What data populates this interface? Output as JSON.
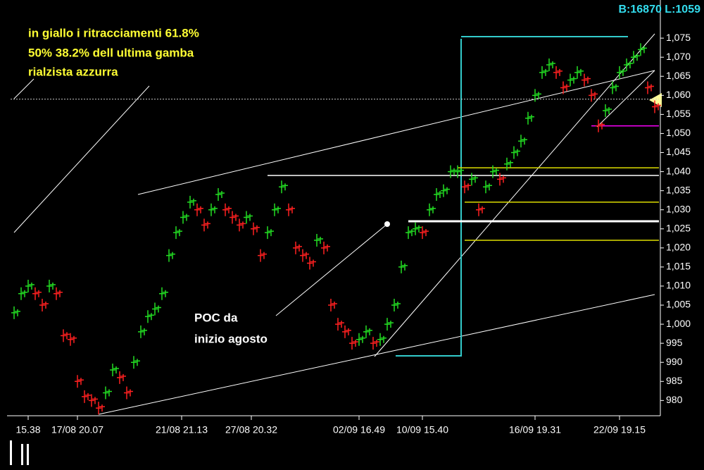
{
  "chart_data": {
    "type": "ohlc",
    "title": "B:16870 L:1059",
    "annotations": [
      "in giallo i ritracciamenti 61.8%",
      "50% 38.2% dell ultima gamba",
      "rialzista azzurra",
      "POC da",
      "inizio agosto"
    ],
    "up_color": "#22dd22",
    "down_color": "#ff2020",
    "values": [
      1003,
      1008,
      1010,
      1008,
      1005,
      1010,
      1008,
      997,
      996,
      985,
      981,
      980,
      978,
      982,
      988,
      986,
      982,
      990,
      998,
      1002,
      1004,
      1008,
      1018,
      1024,
      1028,
      1032,
      1030,
      1026,
      1030,
      1034,
      1030,
      1028,
      1026,
      1028,
      1025,
      1018,
      1024,
      1030,
      1036,
      1030,
      1020,
      1018,
      1016,
      1022,
      1020,
      1005,
      1000,
      998,
      995,
      996,
      998,
      995,
      996,
      1000,
      1005,
      1015,
      1024,
      1025,
      1024,
      1030,
      1034,
      1035,
      1040,
      1040,
      1036,
      1038,
      1030,
      1036,
      1040,
      1038,
      1042,
      1045,
      1048,
      1054,
      1060,
      1066,
      1068,
      1066,
      1062,
      1064,
      1066,
      1064,
      1060,
      1052,
      1056,
      1062,
      1066,
      1068,
      1070,
      1072,
      1062,
      1057
    ],
    "levels": [
      {
        "value": 1059,
        "color": "#cccccc",
        "from": -1
      },
      {
        "value": 1052,
        "color": "#ff00ff",
        "from": 82
      },
      {
        "value": 1041,
        "color": "#dddd00",
        "from": 63
      },
      {
        "value": 1039,
        "color": "#ffffff",
        "from": 36
      },
      {
        "value": 1032,
        "color": "#dddd00",
        "from": 64
      },
      {
        "value": 1027,
        "color": "#ffffff",
        "from": 56
      },
      {
        "value": 1022,
        "color": "#dddd00",
        "from": 64
      }
    ],
    "ylim": [
      976,
      1085
    ],
    "yticks": [
      980,
      985,
      990,
      995,
      {
        "value": 1000,
        "label": "1,000"
      },
      {
        "value": 1005,
        "label": "1,005"
      },
      {
        "value": 1010,
        "label": "1,010"
      },
      {
        "value": 1015,
        "label": "1,015"
      },
      {
        "value": 1020,
        "label": "1,020"
      },
      {
        "value": 1025,
        "label": "1,025"
      },
      {
        "value": 1030,
        "label": "1,030"
      },
      {
        "value": 1035,
        "label": "1,035"
      },
      {
        "value": 1040,
        "label": "1,040"
      },
      {
        "value": 1045,
        "label": "1,045"
      },
      {
        "value": 1050,
        "label": "1,050"
      },
      {
        "value": 1055,
        "label": "1,055"
      },
      {
        "value": 1060,
        "label": "1,060"
      },
      {
        "value": 1065,
        "label": "1,065"
      },
      {
        "value": 1070,
        "label": "1,070"
      },
      {
        "value": 1075,
        "label": "1,075"
      }
    ],
    "xticks": [
      {
        "value": 2,
        "label": "15.38"
      },
      {
        "value": 9,
        "label": "17/08 20.07"
      },
      {
        "value": 23.8,
        "label": "21/08 21.13"
      },
      {
        "value": 33.7,
        "label": "27/08 20.32"
      },
      {
        "value": 49,
        "label": "02/09 16.49"
      },
      {
        "value": 58,
        "label": "10/09 15.40"
      },
      {
        "value": 74,
        "label": "16/09 19.31"
      },
      {
        "value": 86,
        "label": "22/09 19.15"
      }
    ]
  }
}
